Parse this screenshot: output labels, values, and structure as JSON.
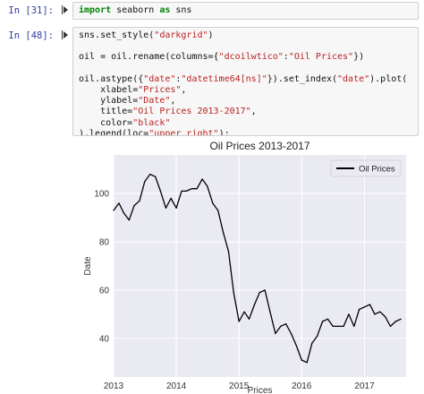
{
  "cells": [
    {
      "prompt": "In [31]:",
      "code": [
        [
          {
            "t": "kw",
            "v": "import"
          },
          {
            "t": "plain",
            "v": " seaborn "
          },
          {
            "t": "kw",
            "v": "as"
          },
          {
            "t": "plain",
            "v": " sns"
          }
        ]
      ]
    },
    {
      "prompt": "In [48]:",
      "code": [
        [
          {
            "t": "plain",
            "v": "sns.set_style("
          },
          {
            "t": "str",
            "v": "\"darkgrid\""
          },
          {
            "t": "plain",
            "v": ")"
          }
        ],
        [],
        [
          {
            "t": "plain",
            "v": "oil = oil.rename(columns={"
          },
          {
            "t": "str",
            "v": "\"dcoilwtico\""
          },
          {
            "t": "plain",
            "v": ":"
          },
          {
            "t": "str",
            "v": "\"Oil Prices\""
          },
          {
            "t": "plain",
            "v": "})"
          }
        ],
        [],
        [
          {
            "t": "plain",
            "v": "oil.astype({"
          },
          {
            "t": "str",
            "v": "\"date\""
          },
          {
            "t": "plain",
            "v": ":"
          },
          {
            "t": "str",
            "v": "\"datetime64[ns]\""
          },
          {
            "t": "plain",
            "v": "}).set_index("
          },
          {
            "t": "str",
            "v": "\"date\""
          },
          {
            "t": "plain",
            "v": ").plot("
          }
        ],
        [
          {
            "t": "plain",
            "v": "    xlabel="
          },
          {
            "t": "str",
            "v": "\"Prices\""
          },
          {
            "t": "plain",
            "v": ","
          }
        ],
        [
          {
            "t": "plain",
            "v": "    ylabel="
          },
          {
            "t": "str",
            "v": "\"Date\""
          },
          {
            "t": "plain",
            "v": ","
          }
        ],
        [
          {
            "t": "plain",
            "v": "    title="
          },
          {
            "t": "str",
            "v": "\"Oil Prices 2013-2017\""
          },
          {
            "t": "plain",
            "v": ","
          }
        ],
        [
          {
            "t": "plain",
            "v": "    color="
          },
          {
            "t": "str",
            "v": "\"black\""
          }
        ],
        [
          {
            "t": "plain",
            "v": ").legend(loc="
          },
          {
            "t": "str",
            "v": "\"upper right\""
          },
          {
            "t": "plain",
            "v": ");"
          }
        ]
      ]
    }
  ],
  "chart_data": {
    "type": "line",
    "title": "Oil Prices 2013-2017",
    "xlabel": "Prices",
    "ylabel": "Date",
    "x_ticks": [
      "2013",
      "2014",
      "2015",
      "2016",
      "2017"
    ],
    "y_ticks": [
      40,
      60,
      80,
      100
    ],
    "xlim": [
      "2013-01-01",
      "2017-08-31"
    ],
    "ylim": [
      24,
      116
    ],
    "grid": true,
    "background": "#eaeaf2",
    "legend_position": "upper-right",
    "series": [
      {
        "name": "Oil Prices",
        "color": "#000000",
        "points": [
          [
            "2013-01-01",
            93
          ],
          [
            "2013-02-01",
            96
          ],
          [
            "2013-03-01",
            92
          ],
          [
            "2013-04-01",
            89
          ],
          [
            "2013-05-01",
            95
          ],
          [
            "2013-06-01",
            97
          ],
          [
            "2013-07-01",
            105
          ],
          [
            "2013-08-01",
            108
          ],
          [
            "2013-09-01",
            107
          ],
          [
            "2013-10-01",
            101
          ],
          [
            "2013-11-01",
            94
          ],
          [
            "2013-12-01",
            98
          ],
          [
            "2014-01-01",
            94
          ],
          [
            "2014-02-01",
            101
          ],
          [
            "2014-03-01",
            101
          ],
          [
            "2014-04-01",
            102
          ],
          [
            "2014-05-01",
            102
          ],
          [
            "2014-06-01",
            106
          ],
          [
            "2014-07-01",
            103
          ],
          [
            "2014-08-01",
            96
          ],
          [
            "2014-09-01",
            93
          ],
          [
            "2014-10-01",
            84
          ],
          [
            "2014-11-01",
            76
          ],
          [
            "2014-12-01",
            59
          ],
          [
            "2015-01-01",
            47
          ],
          [
            "2015-02-01",
            51
          ],
          [
            "2015-03-01",
            48
          ],
          [
            "2015-04-01",
            54
          ],
          [
            "2015-05-01",
            59
          ],
          [
            "2015-06-01",
            60
          ],
          [
            "2015-07-01",
            51
          ],
          [
            "2015-08-01",
            42
          ],
          [
            "2015-09-01",
            45
          ],
          [
            "2015-10-01",
            46
          ],
          [
            "2015-11-01",
            42
          ],
          [
            "2015-12-01",
            37
          ],
          [
            "2016-01-01",
            31
          ],
          [
            "2016-02-01",
            30
          ],
          [
            "2016-03-01",
            38
          ],
          [
            "2016-04-01",
            41
          ],
          [
            "2016-05-01",
            47
          ],
          [
            "2016-06-01",
            48
          ],
          [
            "2016-07-01",
            45
          ],
          [
            "2016-08-01",
            45
          ],
          [
            "2016-09-01",
            45
          ],
          [
            "2016-10-01",
            50
          ],
          [
            "2016-11-01",
            45
          ],
          [
            "2016-12-01",
            52
          ],
          [
            "2017-01-01",
            53
          ],
          [
            "2017-02-01",
            54
          ],
          [
            "2017-03-01",
            50
          ],
          [
            "2017-04-01",
            51
          ],
          [
            "2017-05-01",
            49
          ],
          [
            "2017-06-01",
            45
          ],
          [
            "2017-07-01",
            47
          ],
          [
            "2017-08-01",
            48
          ]
        ]
      }
    ]
  }
}
